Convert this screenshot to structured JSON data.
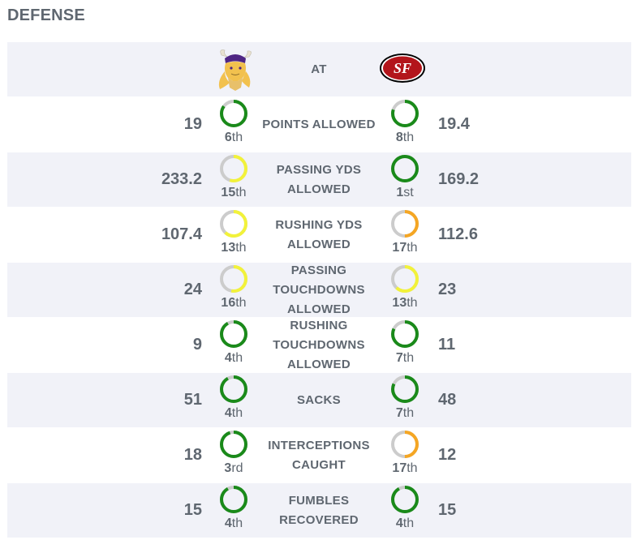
{
  "section": {
    "title": "DEFENSE"
  },
  "header": {
    "at_label": "AT",
    "away_logo": "vikings-logo",
    "home_logo": "49ers-logo"
  },
  "colors": {
    "good": "#1a8a1a",
    "mid": "#f2f23a",
    "bad": "#f5a623",
    "track": "#cccccc"
  },
  "rows": [
    {
      "label": "POINTS ALLOWED",
      "lines": [
        "POINTS ALLOWED"
      ],
      "away": {
        "value": "19",
        "rank": "6",
        "suffix": "th",
        "fill": 0.85,
        "color": "good"
      },
      "home": {
        "value": "19.4",
        "rank": "8",
        "suffix": "th",
        "fill": 0.8,
        "color": "good"
      }
    },
    {
      "label": "PASSING YDS ALLOWED",
      "lines": [
        "PASSING YDS",
        "ALLOWED"
      ],
      "away": {
        "value": "233.2",
        "rank": "15",
        "suffix": "th",
        "fill": 0.55,
        "color": "mid"
      },
      "home": {
        "value": "169.2",
        "rank": "1",
        "suffix": "st",
        "fill": 1.0,
        "color": "good"
      }
    },
    {
      "label": "RUSHING YDS ALLOWED",
      "lines": [
        "RUSHING YDS",
        "ALLOWED"
      ],
      "away": {
        "value": "107.4",
        "rank": "13",
        "suffix": "th",
        "fill": 0.62,
        "color": "mid"
      },
      "home": {
        "value": "112.6",
        "rank": "17",
        "suffix": "th",
        "fill": 0.5,
        "color": "bad"
      }
    },
    {
      "label": "PASSING TOUCHDOWNS ALLOWED",
      "lines": [
        "PASSING",
        "TOUCHDOWNS",
        "ALLOWED"
      ],
      "away": {
        "value": "24",
        "rank": "16",
        "suffix": "th",
        "fill": 0.53,
        "color": "mid"
      },
      "home": {
        "value": "23",
        "rank": "13",
        "suffix": "th",
        "fill": 0.62,
        "color": "mid"
      }
    },
    {
      "label": "RUSHING TOUCHDOWNS ALLOWED",
      "lines": [
        "RUSHING",
        "TOUCHDOWNS",
        "ALLOWED"
      ],
      "away": {
        "value": "9",
        "rank": "4",
        "suffix": "th",
        "fill": 0.92,
        "color": "good"
      },
      "home": {
        "value": "11",
        "rank": "7",
        "suffix": "th",
        "fill": 0.82,
        "color": "good"
      }
    },
    {
      "label": "SACKS",
      "lines": [
        "SACKS"
      ],
      "away": {
        "value": "51",
        "rank": "4",
        "suffix": "th",
        "fill": 0.92,
        "color": "good"
      },
      "home": {
        "value": "48",
        "rank": "7",
        "suffix": "th",
        "fill": 0.82,
        "color": "good"
      }
    },
    {
      "label": "INTERCEPTIONS CAUGHT",
      "lines": [
        "INTERCEPTIONS",
        "CAUGHT"
      ],
      "away": {
        "value": "18",
        "rank": "3",
        "suffix": "rd",
        "fill": 0.95,
        "color": "good"
      },
      "home": {
        "value": "12",
        "rank": "17",
        "suffix": "th",
        "fill": 0.5,
        "color": "bad"
      }
    },
    {
      "label": "FUMBLES RECOVERED",
      "lines": [
        "FUMBLES",
        "RECOVERED"
      ],
      "away": {
        "value": "15",
        "rank": "4",
        "suffix": "th",
        "fill": 0.92,
        "color": "good"
      },
      "home": {
        "value": "15",
        "rank": "4",
        "suffix": "th",
        "fill": 0.92,
        "color": "good"
      }
    }
  ]
}
